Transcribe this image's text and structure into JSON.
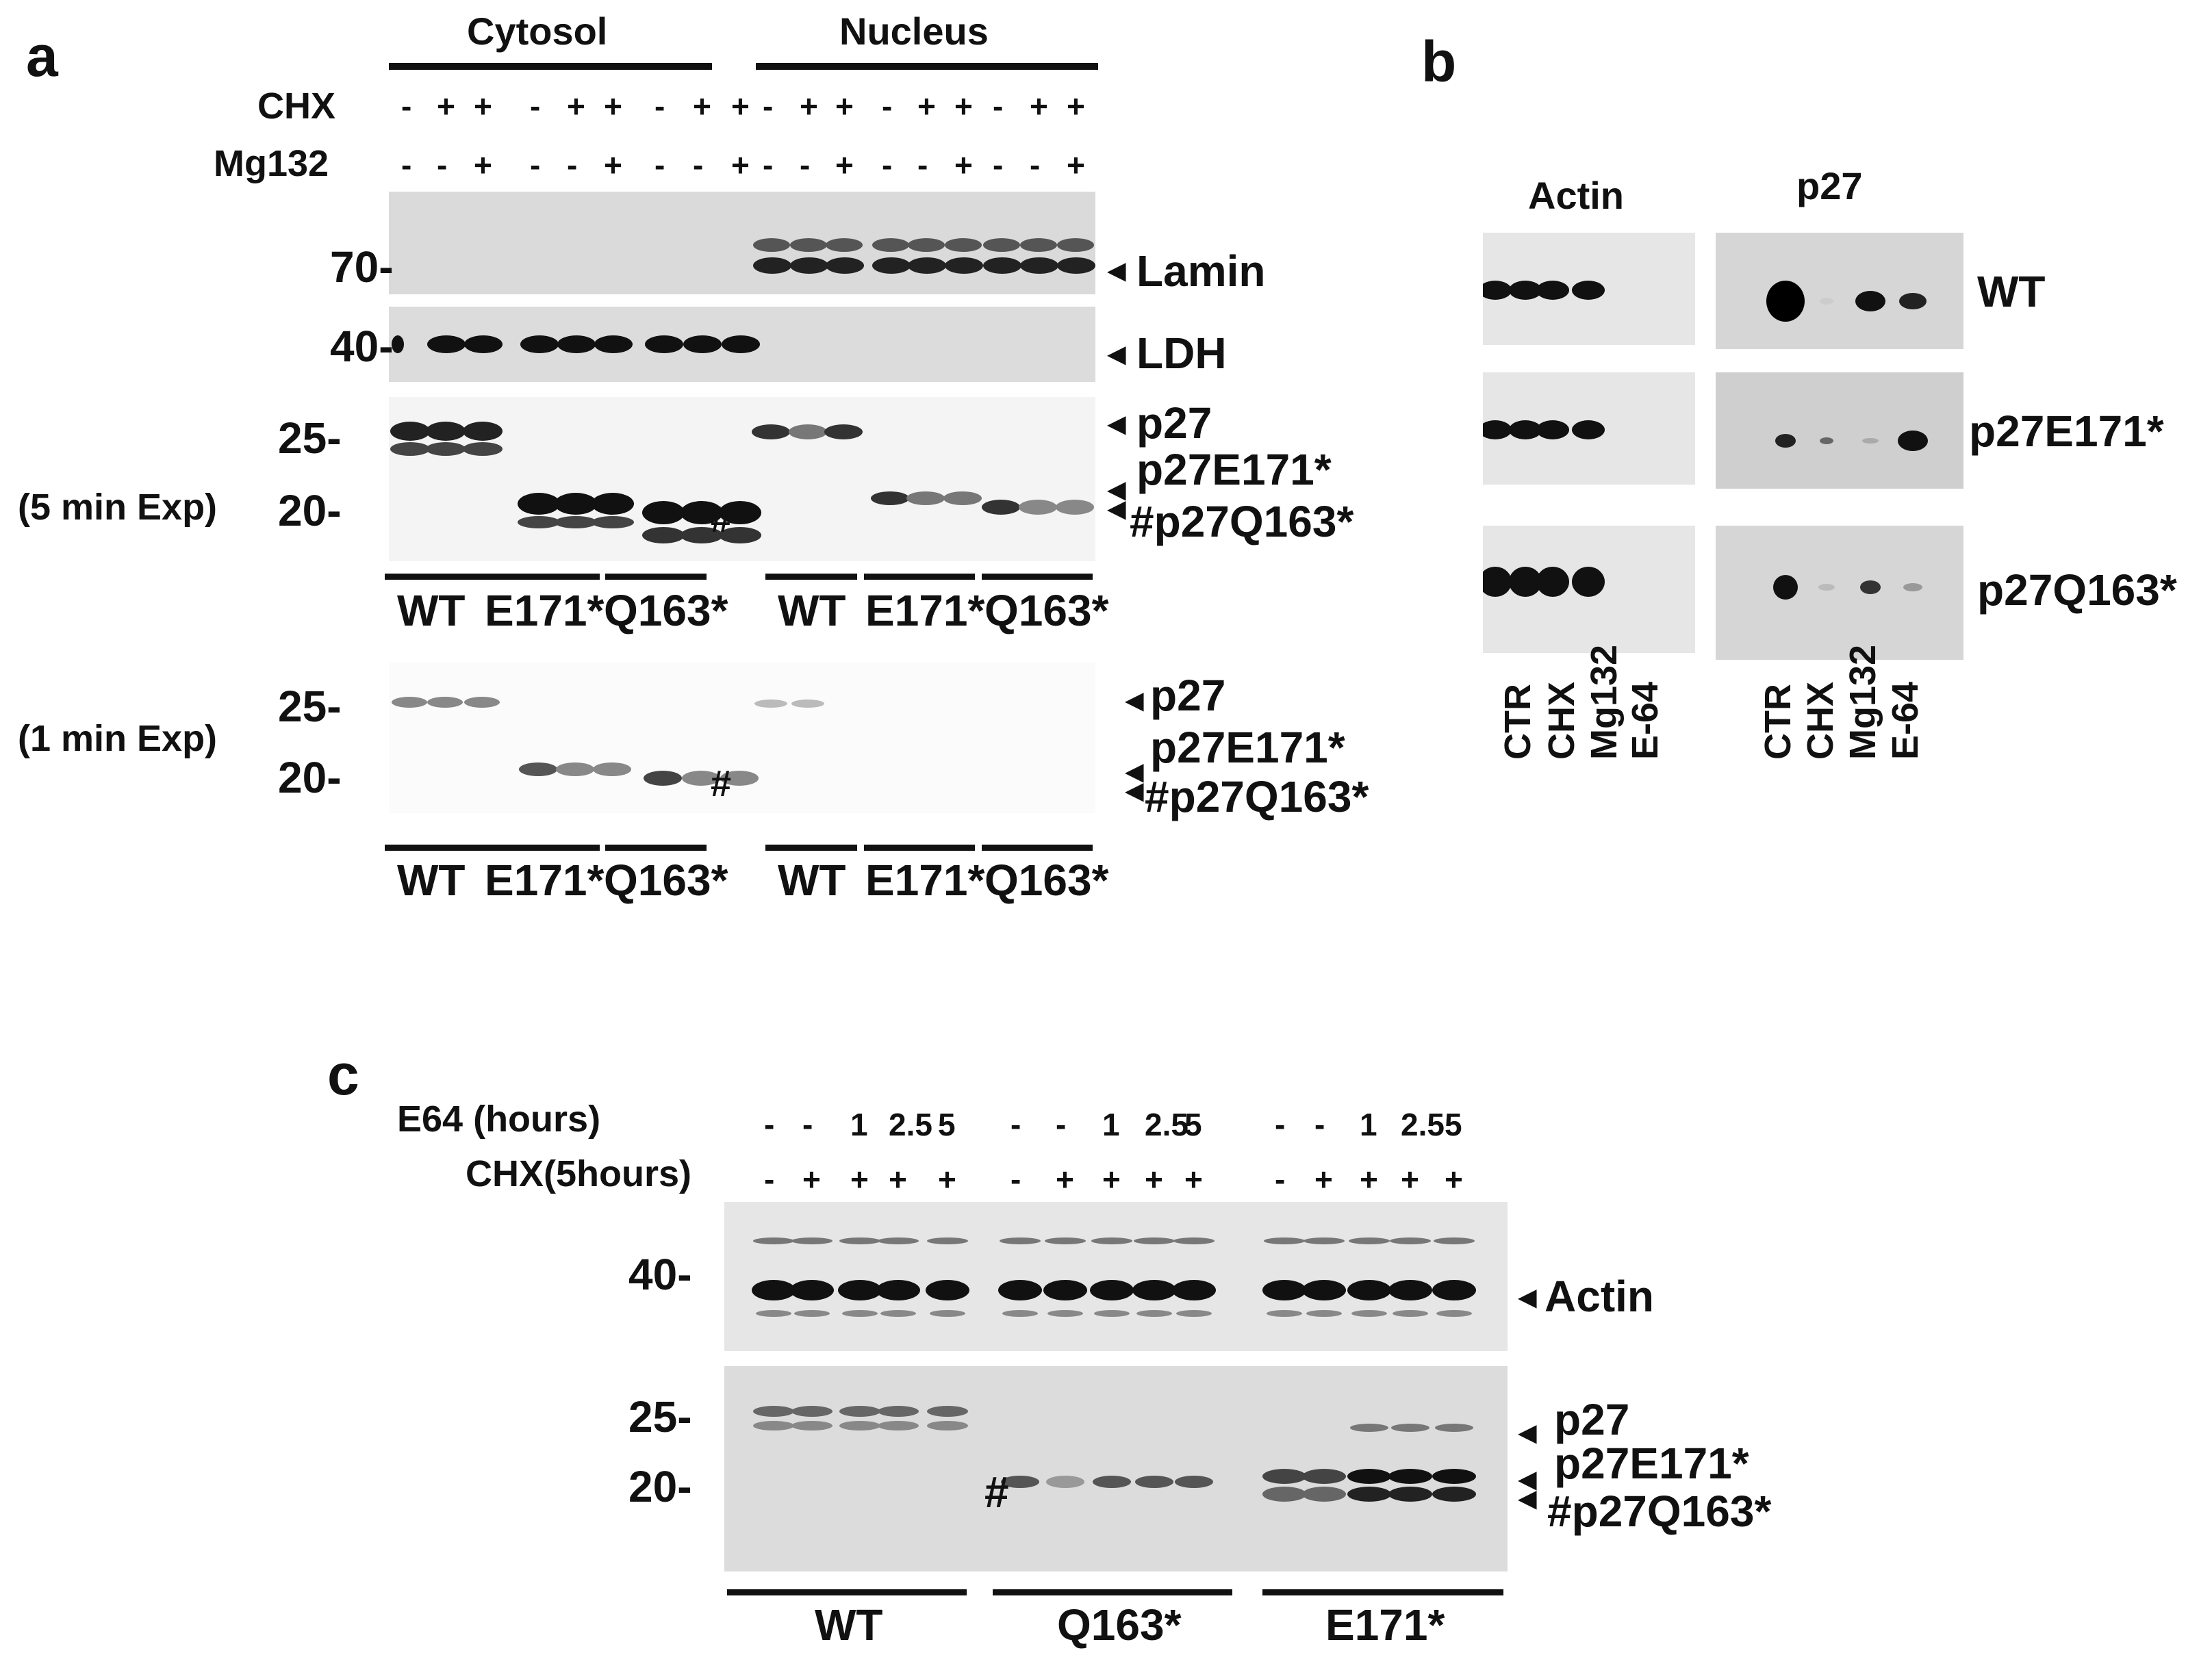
{
  "panel_a": {
    "letter": "a",
    "fractions": [
      "Cytosol",
      "Nucleus"
    ],
    "row_labels": [
      "CHX",
      "Mg132"
    ],
    "chx_signs": [
      "-",
      "+",
      "+",
      "-",
      "+",
      "+",
      "-",
      "+",
      "+"
    ],
    "mg_signs": [
      "-",
      "-",
      "+",
      "-",
      "-",
      "+",
      "-",
      "-",
      "+"
    ],
    "markers": {
      "m70": "70-",
      "m40": "40-",
      "m25": "25-",
      "m20": "20-"
    },
    "band_labels": {
      "lamin": "Lamin",
      "ldh": "LDH",
      "p27": "p27",
      "e171": "p27E171*",
      "q163": "#p27Q163*",
      "hash": "#"
    },
    "exposures": [
      "(5 min Exp)",
      "(1 min Exp)"
    ],
    "groups": [
      "WT",
      "E171*",
      "Q163*"
    ]
  },
  "panel_b": {
    "letter": "b",
    "headers": [
      "Actin",
      "p27"
    ],
    "rows": [
      "WT",
      "p27E171*",
      "p27Q163*"
    ],
    "lanes": [
      "CTR",
      "CHX",
      "Mg132",
      "E-64"
    ]
  },
  "panel_c": {
    "letter": "c",
    "row_labels": [
      "E64 (hours)",
      "CHX(5hours)"
    ],
    "e64_values": [
      "-",
      "-",
      "1",
      "2.5",
      "5"
    ],
    "chx_values": [
      "-",
      "+",
      "+",
      "+",
      "+"
    ],
    "markers": {
      "m40": "40-",
      "m25": "25-",
      "m20": "20-"
    },
    "band_labels": {
      "actin": "Actin",
      "p27": "p27",
      "e171": "p27E171*",
      "q163": "#p27Q163*",
      "hash": "#"
    },
    "groups": [
      "WT",
      "Q163*",
      "E171*"
    ]
  }
}
